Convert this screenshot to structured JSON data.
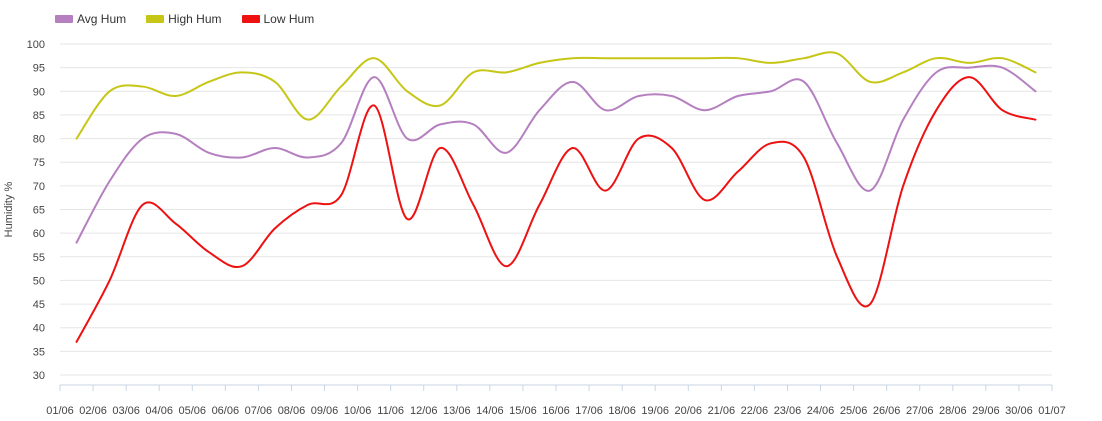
{
  "chart_data": {
    "type": "line",
    "title": "",
    "xlabel": "",
    "ylabel": "Humidity %",
    "ylim": [
      30,
      100
    ],
    "yticks": [
      30,
      35,
      40,
      45,
      50,
      55,
      60,
      65,
      70,
      75,
      80,
      85,
      90,
      95,
      100
    ],
    "grid": true,
    "legend_position": "top-left",
    "x_tick_labels": [
      "01/06",
      "02/06",
      "03/06",
      "04/06",
      "05/06",
      "06/06",
      "07/06",
      "08/06",
      "09/06",
      "10/06",
      "11/06",
      "12/06",
      "13/06",
      "14/06",
      "15/06",
      "16/06",
      "17/06",
      "18/06",
      "19/06",
      "20/06",
      "21/06",
      "22/06",
      "23/06",
      "24/06",
      "25/06",
      "26/06",
      "27/06",
      "28/06",
      "29/06",
      "30/06",
      "01/07"
    ],
    "series": [
      {
        "name": "Avg Hum",
        "color": "#b57fc0",
        "values": [
          58,
          71,
          80,
          81,
          77,
          76,
          78,
          76,
          79,
          93,
          80,
          83,
          83,
          77,
          86,
          92,
          86,
          89,
          89,
          86,
          89,
          90,
          92,
          79,
          69,
          84,
          94,
          95,
          95,
          90
        ]
      },
      {
        "name": "High Hum",
        "color": "#c6c616",
        "values": [
          80,
          90,
          91,
          89,
          92,
          94,
          92,
          84,
          91,
          97,
          90,
          87,
          94,
          94,
          96,
          97,
          97,
          97,
          97,
          97,
          97,
          96,
          97,
          98,
          92,
          94,
          97,
          96,
          97,
          94
        ]
      },
      {
        "name": "Low Hum",
        "color": "#ee1111",
        "values": [
          37,
          50,
          66,
          62,
          56,
          53,
          61,
          66,
          68,
          87,
          63,
          78,
          66,
          53,
          66,
          78,
          69,
          80,
          78,
          67,
          73,
          79,
          76,
          55,
          45,
          70,
          86,
          93,
          86,
          84
        ]
      }
    ]
  }
}
